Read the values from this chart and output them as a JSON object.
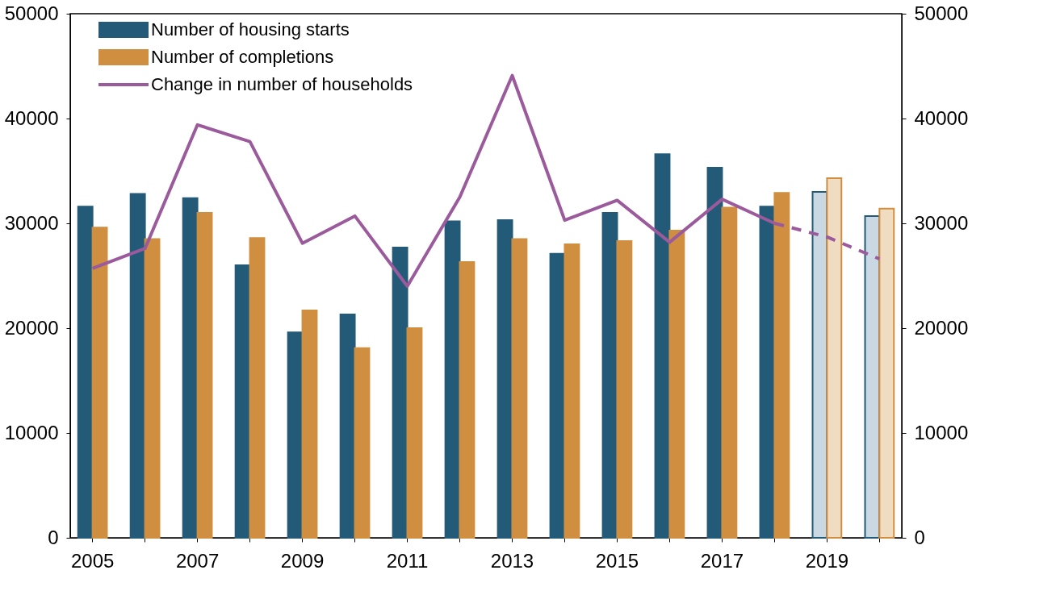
{
  "chart_data": {
    "type": "bar",
    "categories": [
      "2005",
      null,
      "2007",
      null,
      "2009",
      null,
      "2011",
      null,
      "2013",
      null,
      "2015",
      null,
      "2017",
      null,
      "2019",
      null
    ],
    "series": [
      {
        "name": "Number of housing starts",
        "color": "#235a78",
        "colors": [
          "#235a78",
          "#235a78",
          "#235a78",
          "#235a78",
          "#235a78",
          "#235a78",
          "#235a78",
          "#235a78",
          "#235a78",
          "#235a78",
          "#235a78",
          "#235a78",
          "#235a78",
          "#235a78",
          "#c9d8e2",
          "#c9d8e2"
        ],
        "values": [
          31600,
          32800,
          32400,
          26000,
          19600,
          21300,
          27700,
          30200,
          30300,
          27100,
          31000,
          36600,
          35300,
          31600,
          33000,
          30700
        ]
      },
      {
        "name": "Number of completions",
        "color": "#d08f40",
        "colors": [
          "#d08f40",
          "#d08f40",
          "#d08f40",
          "#d08f40",
          "#d08f40",
          "#d08f40",
          "#d08f40",
          "#d08f40",
          "#d08f40",
          "#d08f40",
          "#d08f40",
          "#d08f40",
          "#d08f40",
          "#d08f40",
          "#f0dcc0",
          "#f0dcc0"
        ],
        "values": [
          29600,
          28500,
          31000,
          28600,
          21700,
          18100,
          20000,
          26300,
          28500,
          28000,
          28300,
          29300,
          31500,
          32900,
          34300,
          31400
        ]
      },
      {
        "name": "Change in number of households",
        "type": "line",
        "line_style": "solid",
        "color": "#9b5a9b",
        "values": [
          25700,
          27600,
          39400,
          37800,
          28100,
          30700,
          24000,
          32500,
          44100,
          30300,
          32200,
          28200,
          32300,
          30000,
          null,
          null
        ]
      },
      {
        "type": "line",
        "line_style": "dashed",
        "color": "#9b5a9b",
        "values": [
          null,
          null,
          null,
          null,
          null,
          null,
          null,
          null,
          null,
          null,
          null,
          null,
          null,
          30000,
          28700,
          26600
        ]
      }
    ],
    "ylim": [
      0,
      50000
    ],
    "yticks": [
      0,
      10000,
      20000,
      30000,
      40000,
      50000
    ],
    "y2lim": [
      0,
      50000
    ],
    "y2ticks": [
      0,
      10000,
      20000,
      30000,
      40000,
      50000
    ],
    "grid": false,
    "legend": "top left"
  }
}
